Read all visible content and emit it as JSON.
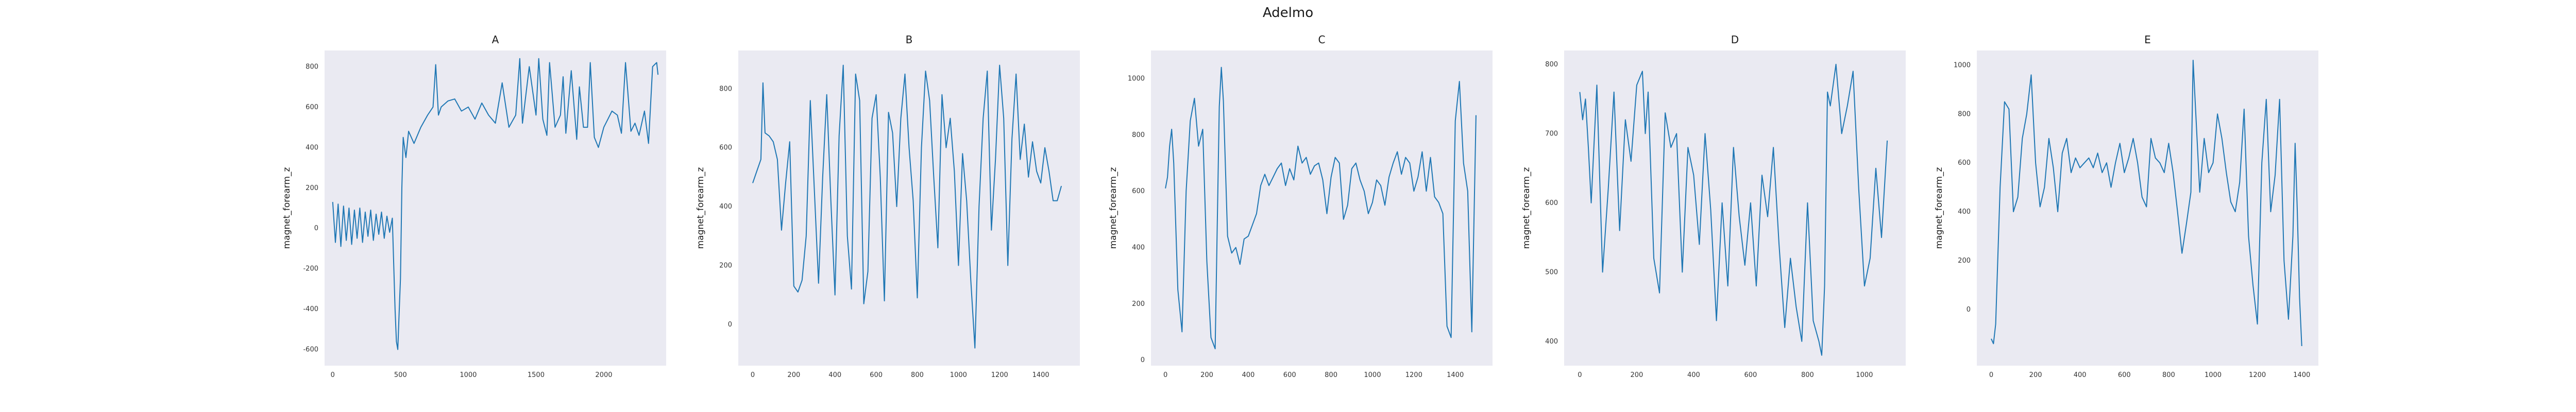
{
  "figure": {
    "suptitle": "Adelmo"
  },
  "chart_data": [
    {
      "type": "line",
      "title": "A",
      "xlabel": "",
      "ylabel": "magnet_forearm_z",
      "grid": false,
      "color": "#1f77b4",
      "xlim": [
        -60,
        2460
      ],
      "ylim": [
        -680,
        880
      ],
      "xticks": [
        0,
        500,
        1000,
        1500,
        2000
      ],
      "yticks": [
        -600,
        -400,
        -200,
        0,
        200,
        400,
        600,
        800
      ],
      "series": [
        {
          "x": [
            0,
            20,
            40,
            60,
            80,
            100,
            120,
            140,
            160,
            180,
            200,
            220,
            240,
            260,
            280,
            300,
            320,
            340,
            360,
            380,
            400,
            420,
            440,
            460,
            470,
            480,
            490,
            500,
            510,
            520,
            540,
            560,
            600,
            650,
            700,
            740,
            760,
            780,
            800,
            850,
            900,
            950,
            1000,
            1050,
            1100,
            1150,
            1200,
            1250,
            1300,
            1350,
            1380,
            1400,
            1450,
            1500,
            1520,
            1550,
            1580,
            1600,
            1640,
            1680,
            1700,
            1720,
            1760,
            1800,
            1820,
            1850,
            1880,
            1900,
            1930,
            1960,
            2000,
            2030,
            2060,
            2100,
            2130,
            2160,
            2200,
            2230,
            2260,
            2300,
            2330,
            2360,
            2390,
            2400
          ],
          "y": [
            130,
            -70,
            120,
            -90,
            110,
            -60,
            100,
            -80,
            90,
            -50,
            100,
            -70,
            80,
            -40,
            90,
            -60,
            70,
            -30,
            80,
            -50,
            60,
            -20,
            50,
            -400,
            -560,
            -600,
            -420,
            -250,
            200,
            450,
            350,
            480,
            420,
            500,
            560,
            600,
            810,
            560,
            600,
            630,
            640,
            580,
            600,
            540,
            620,
            560,
            520,
            720,
            500,
            560,
            840,
            520,
            800,
            560,
            840,
            540,
            460,
            820,
            500,
            560,
            750,
            470,
            780,
            440,
            700,
            500,
            500,
            820,
            450,
            400,
            500,
            540,
            580,
            560,
            470,
            820,
            480,
            520,
            460,
            580,
            420,
            800,
            820,
            760
          ]
        }
      ]
    },
    {
      "type": "line",
      "title": "B",
      "xlabel": "",
      "ylabel": "magnet_forearm_z",
      "grid": false,
      "color": "#1f77b4",
      "xlim": [
        -70,
        1590
      ],
      "ylim": [
        -140,
        930
      ],
      "xticks": [
        0,
        200,
        400,
        600,
        800,
        1000,
        1200,
        1400
      ],
      "yticks": [
        0,
        200,
        400,
        600,
        800
      ],
      "series": [
        {
          "x": [
            0,
            20,
            40,
            50,
            60,
            80,
            100,
            120,
            140,
            160,
            180,
            200,
            220,
            240,
            260,
            280,
            300,
            320,
            340,
            360,
            380,
            400,
            420,
            440,
            460,
            480,
            500,
            520,
            540,
            560,
            580,
            600,
            620,
            640,
            660,
            680,
            700,
            720,
            740,
            760,
            780,
            800,
            820,
            840,
            860,
            880,
            900,
            920,
            940,
            960,
            980,
            1000,
            1020,
            1040,
            1060,
            1080,
            1100,
            1120,
            1140,
            1160,
            1180,
            1200,
            1220,
            1240,
            1260,
            1280,
            1300,
            1320,
            1340,
            1360,
            1380,
            1400,
            1420,
            1440,
            1460,
            1480,
            1500
          ],
          "y": [
            480,
            520,
            560,
            820,
            650,
            640,
            620,
            560,
            320,
            480,
            620,
            130,
            110,
            150,
            300,
            760,
            450,
            140,
            500,
            780,
            420,
            100,
            640,
            880,
            300,
            120,
            850,
            760,
            70,
            180,
            700,
            780,
            500,
            80,
            720,
            650,
            400,
            700,
            850,
            600,
            420,
            90,
            600,
            860,
            760,
            500,
            260,
            780,
            600,
            700,
            520,
            200,
            580,
            420,
            150,
            -80,
            400,
            700,
            860,
            320,
            560,
            880,
            700,
            200,
            630,
            850,
            560,
            680,
            500,
            620,
            520,
            480,
            600,
            520,
            420,
            420,
            470
          ]
        }
      ]
    },
    {
      "type": "line",
      "title": "C",
      "xlabel": "",
      "ylabel": "magnet_forearm_z",
      "grid": false,
      "color": "#1f77b4",
      "xlim": [
        -70,
        1580
      ],
      "ylim": [
        -20,
        1100
      ],
      "xticks": [
        0,
        200,
        400,
        600,
        800,
        1000,
        1200,
        1400
      ],
      "yticks": [
        0,
        200,
        400,
        600,
        800,
        1000
      ],
      "series": [
        {
          "x": [
            0,
            10,
            20,
            30,
            40,
            60,
            80,
            100,
            120,
            140,
            160,
            180,
            200,
            220,
            240,
            260,
            270,
            280,
            300,
            320,
            340,
            360,
            380,
            400,
            420,
            440,
            460,
            480,
            500,
            520,
            540,
            560,
            580,
            600,
            620,
            640,
            660,
            680,
            700,
            720,
            740,
            760,
            780,
            800,
            820,
            840,
            860,
            880,
            900,
            920,
            940,
            960,
            980,
            1000,
            1020,
            1040,
            1060,
            1080,
            1100,
            1120,
            1140,
            1160,
            1180,
            1200,
            1220,
            1240,
            1260,
            1280,
            1300,
            1320,
            1340,
            1360,
            1380,
            1400,
            1420,
            1440,
            1460,
            1480,
            1500
          ],
          "y": [
            610,
            650,
            760,
            820,
            700,
            250,
            100,
            600,
            850,
            930,
            760,
            820,
            350,
            80,
            40,
            900,
            1040,
            920,
            440,
            380,
            400,
            340,
            430,
            440,
            480,
            520,
            620,
            660,
            620,
            650,
            680,
            700,
            620,
            680,
            640,
            760,
            700,
            720,
            660,
            690,
            700,
            640,
            520,
            650,
            720,
            700,
            500,
            550,
            680,
            700,
            640,
            600,
            520,
            560,
            640,
            620,
            550,
            650,
            700,
            740,
            660,
            720,
            700,
            600,
            650,
            740,
            600,
            720,
            580,
            560,
            520,
            120,
            80,
            850,
            990,
            700,
            600,
            100,
            870
          ]
        }
      ]
    },
    {
      "type": "line",
      "title": "D",
      "xlabel": "",
      "ylabel": "magnet_forearm_z",
      "grid": false,
      "color": "#1f77b4",
      "xlim": [
        -55,
        1145
      ],
      "ylim": [
        365,
        820
      ],
      "xticks": [
        0,
        200,
        400,
        600,
        800,
        1000
      ],
      "yticks": [
        400,
        500,
        600,
        700,
        800
      ],
      "series": [
        {
          "x": [
            0,
            10,
            20,
            30,
            40,
            60,
            80,
            100,
            120,
            140,
            160,
            180,
            200,
            220,
            230,
            240,
            260,
            280,
            300,
            320,
            340,
            360,
            380,
            400,
            420,
            440,
            460,
            480,
            500,
            520,
            540,
            560,
            580,
            600,
            620,
            640,
            660,
            680,
            700,
            720,
            740,
            760,
            780,
            800,
            820,
            840,
            850,
            860,
            870,
            880,
            900,
            920,
            940,
            960,
            980,
            1000,
            1020,
            1040,
            1060,
            1080
          ],
          "y": [
            760,
            720,
            750,
            680,
            600,
            770,
            500,
            620,
            760,
            560,
            720,
            660,
            770,
            790,
            700,
            760,
            520,
            470,
            730,
            680,
            700,
            500,
            680,
            640,
            540,
            700,
            590,
            430,
            600,
            480,
            680,
            580,
            510,
            600,
            480,
            640,
            580,
            680,
            540,
            420,
            520,
            450,
            400,
            600,
            430,
            400,
            380,
            480,
            760,
            740,
            800,
            700,
            740,
            790,
            620,
            480,
            520,
            650,
            550,
            690
          ]
        }
      ]
    },
    {
      "type": "line",
      "title": "E",
      "xlabel": "",
      "ylabel": "magnet_forearm_z",
      "grid": false,
      "color": "#1f77b4",
      "xlim": [
        -65,
        1475
      ],
      "ylim": [
        -230,
        1060
      ],
      "xticks": [
        0,
        200,
        400,
        600,
        800,
        1000,
        1200,
        1400
      ],
      "yticks": [
        0,
        200,
        400,
        600,
        800,
        1000
      ],
      "series": [
        {
          "x": [
            0,
            10,
            20,
            40,
            60,
            80,
            100,
            120,
            140,
            160,
            180,
            200,
            220,
            240,
            260,
            280,
            300,
            320,
            340,
            360,
            380,
            400,
            420,
            440,
            460,
            480,
            500,
            520,
            540,
            560,
            580,
            600,
            620,
            640,
            660,
            680,
            700,
            720,
            740,
            760,
            780,
            800,
            820,
            840,
            860,
            880,
            900,
            910,
            920,
            940,
            960,
            980,
            1000,
            1020,
            1040,
            1060,
            1080,
            1100,
            1120,
            1140,
            1160,
            1180,
            1200,
            1220,
            1240,
            1260,
            1280,
            1300,
            1320,
            1340,
            1360,
            1370,
            1380,
            1390,
            1400
          ],
          "y": [
            -120,
            -140,
            -60,
            500,
            850,
            820,
            400,
            460,
            700,
            800,
            960,
            600,
            420,
            500,
            700,
            580,
            400,
            640,
            700,
            560,
            620,
            580,
            600,
            620,
            580,
            640,
            560,
            600,
            500,
            600,
            680,
            560,
            620,
            700,
            600,
            460,
            420,
            700,
            620,
            600,
            560,
            680,
            560,
            400,
            230,
            350,
            480,
            1020,
            840,
            480,
            700,
            560,
            600,
            800,
            700,
            560,
            440,
            400,
            520,
            820,
            300,
            100,
            -60,
            600,
            860,
            400,
            550,
            860,
            200,
            -40,
            300,
            680,
            400,
            50,
            -150
          ]
        }
      ]
    }
  ]
}
